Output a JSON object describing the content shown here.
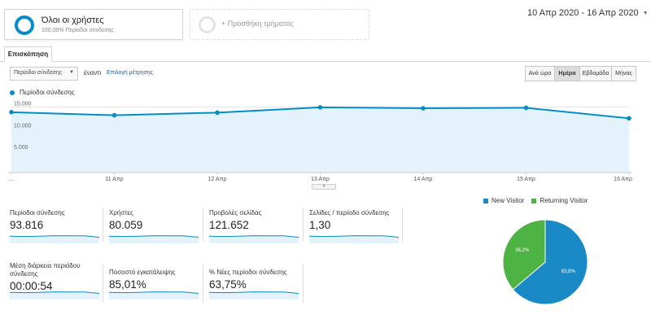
{
  "segments": {
    "active": {
      "name": "Όλοι οι χρήστες",
      "detail": "100,00% Περίοδοι σύνδεσης"
    },
    "add": {
      "label": "+ Προσθήκη τμήματος"
    }
  },
  "date_range": "10 Απρ 2020 - 16 Απρ 2020",
  "tabs": [
    {
      "label": "Επισκόπηση"
    }
  ],
  "toolbar": {
    "metric_select": "Περίοδοι σύνδεσης",
    "vs_label": "έναντι",
    "choose_metric": "Επιλογή μέτρησης",
    "granularity": [
      "Ανά ώρα",
      "Ημέρα",
      "Εβδομάδα",
      "Μήνας"
    ],
    "selected_granularity": "Ημέρα"
  },
  "chart_data": [
    {
      "type": "line",
      "series": [
        {
          "name": "Περίοδοι σύνδεσης",
          "values": [
            13800,
            13100,
            13700,
            14900,
            14700,
            14800,
            12400
          ]
        }
      ],
      "x": [
        "…",
        "11 Απρ",
        "12 Απρ",
        "13 Απρ",
        "14 Απρ",
        "15 Απρ",
        "16 Απρ"
      ],
      "y_ticks": [
        "15.000",
        "10.000",
        "5.000"
      ],
      "ylim": [
        0,
        16000
      ],
      "legend": "top-left",
      "grid": true,
      "colors": {
        "line": "#058dc7",
        "fill": "#e3f2fb"
      }
    },
    {
      "type": "pie",
      "series": [
        {
          "name": "New Visitor",
          "value": 63.8,
          "label": "63,8%",
          "color": "#1a8ac6"
        },
        {
          "name": "Returning Visitor",
          "value": 36.2,
          "label": "36,2%",
          "color": "#4db342"
        }
      ],
      "legend": "top"
    }
  ],
  "metrics": [
    {
      "label": "Περίοδοι σύνδεσης",
      "value": "93.816"
    },
    {
      "label": "Χρήστες",
      "value": "80.059"
    },
    {
      "label": "Προβολές σελίδας",
      "value": "121.652"
    },
    {
      "label": "Σελίδες / περίοδο σύνδεσης",
      "value": "1,30"
    },
    {
      "label": "Μέση διάρκεια περιόδου σύνδεσης",
      "value": "00:00:54"
    },
    {
      "label": "Ποσοστό εγκατάλειψης",
      "value": "85,01%"
    },
    {
      "label": "% Νέες περίοδοι σύνδεσης",
      "value": "63,75%"
    }
  ]
}
